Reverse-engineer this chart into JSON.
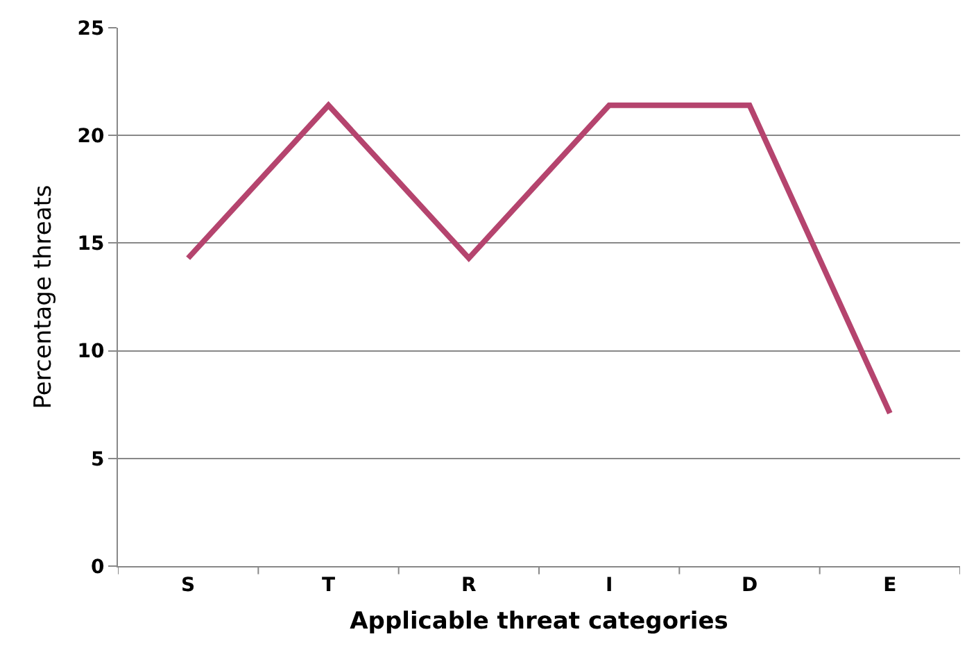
{
  "chart_data": {
    "type": "line",
    "xlabel": "Applicable threat categories",
    "ylabel": "Percentage threats",
    "categories": [
      "S",
      "T",
      "R",
      "I",
      "D",
      "E"
    ],
    "series": [
      {
        "color": "#b5446e",
        "values": [
          14.3,
          21.4,
          14.3,
          21.4,
          21.4,
          7.1
        ]
      }
    ],
    "ylim": [
      0,
      25
    ],
    "yticks": [
      0,
      5,
      10,
      15,
      20,
      25
    ],
    "grid": "y",
    "legend": false,
    "marker": "none",
    "line_style": "solid"
  }
}
